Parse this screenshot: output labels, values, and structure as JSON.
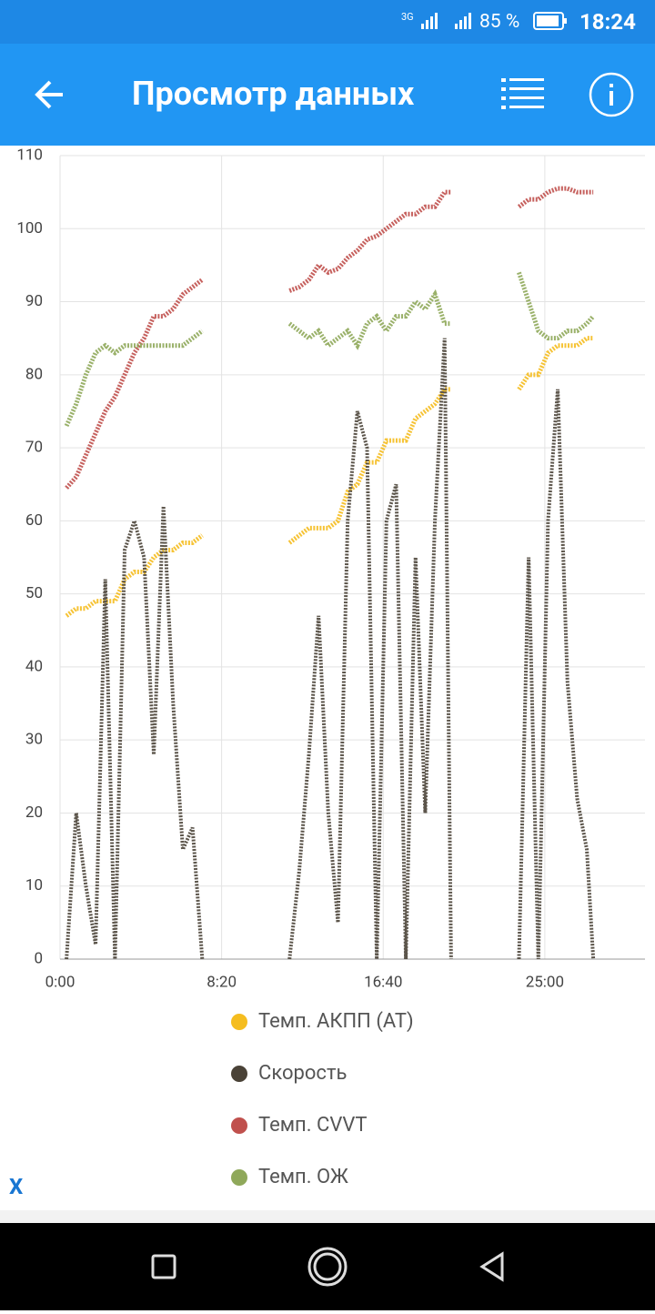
{
  "status_bar": {
    "network": "3G",
    "battery": "85 %",
    "time": "18:24"
  },
  "app_bar": {
    "title": "Просмотр данных"
  },
  "chart_data": {
    "type": "line",
    "x": [
      20,
      50,
      80,
      110,
      140,
      170,
      200,
      230,
      260,
      290,
      320,
      350,
      380,
      410,
      440,
      575,
      710,
      740,
      770,
      800,
      830,
      860,
      890,
      920,
      950,
      980,
      1010,
      1040,
      1070,
      1100,
      1130,
      1160,
      1190,
      1210,
      1315,
      1420,
      1450,
      1480,
      1510,
      1540,
      1570,
      1600,
      1630,
      1650
    ],
    "series": [
      {
        "name": "Темп. АКПП (AT)",
        "color": "#f5bd1f",
        "values": [
          47,
          48,
          48,
          49,
          49,
          49,
          52,
          53,
          53,
          55,
          56,
          56,
          57,
          57,
          58,
          null,
          57,
          58,
          59,
          59,
          59,
          60,
          64,
          65,
          68,
          68,
          71,
          71,
          71,
          74,
          75,
          76,
          78,
          78,
          null,
          78,
          80,
          80,
          83,
          84,
          84,
          84,
          85,
          85
        ]
      },
      {
        "name": "Скорость",
        "color": "#4a4237",
        "values": [
          0,
          20,
          10,
          2,
          52,
          0,
          56,
          60,
          55,
          28,
          62,
          35,
          15,
          18,
          0,
          null,
          0,
          12,
          28,
          47,
          20,
          5,
          60,
          75,
          70,
          0,
          60,
          65,
          0,
          55,
          20,
          60,
          85,
          0,
          null,
          0,
          55,
          0,
          60,
          78,
          38,
          22,
          15,
          0
        ]
      },
      {
        "name": "Темп. CVVT",
        "color": "#c0504d",
        "values": [
          64.5,
          66,
          69,
          72,
          75,
          77,
          80,
          83,
          85,
          88,
          88,
          89,
          91,
          92,
          93,
          null,
          91.5,
          92,
          93,
          95,
          94,
          94.5,
          96,
          97,
          98.5,
          99,
          100,
          101,
          102,
          102,
          103,
          103,
          105,
          105,
          null,
          103,
          104,
          104,
          105,
          105.5,
          105.5,
          105,
          105,
          105
        ]
      },
      {
        "name": "Темп. ОЖ",
        "color": "#8fa85a",
        "values": [
          73,
          76,
          80,
          83,
          84,
          83,
          84,
          84,
          84,
          84,
          84,
          84,
          84,
          85,
          86,
          null,
          87,
          86,
          85,
          86,
          84,
          85,
          86,
          84,
          87,
          88,
          86,
          88,
          88,
          90,
          89,
          91,
          87,
          87,
          null,
          94,
          90,
          86,
          85,
          85,
          86,
          86,
          87,
          88
        ]
      }
    ],
    "xlim": [
      0,
      1810
    ],
    "xticks": [
      {
        "value": 0,
        "label": "0:00"
      },
      {
        "value": 500,
        "label": "8:20"
      },
      {
        "value": 1000,
        "label": "16:40"
      },
      {
        "value": 1500,
        "label": "25:00"
      }
    ],
    "ylim": [
      0,
      110
    ],
    "yticks": [
      0,
      10,
      20,
      30,
      40,
      50,
      60,
      70,
      80,
      90,
      100,
      110
    ],
    "grid": true
  },
  "close_label": "X"
}
